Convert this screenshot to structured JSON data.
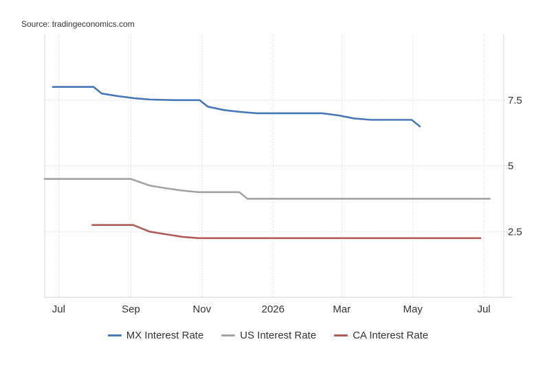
{
  "source": "Source: tradingeconomics.com",
  "chart_data": {
    "type": "line",
    "x_tick_labels": [
      "Jul",
      "Sep",
      "Nov",
      "2026",
      "Mar",
      "May",
      "Jul"
    ],
    "x_tick_dates": [
      "2025-07-01",
      "2025-09-01",
      "2025-11-01",
      "2026-01-01",
      "2026-03-01",
      "2026-05-01",
      "2026-07-01"
    ],
    "y_tick_labels": [
      "2.5",
      "5",
      "7.5"
    ],
    "y_tick_values": [
      2.5,
      5,
      7.5
    ],
    "xlim": [
      "2025-06-19",
      "2026-07-18"
    ],
    "ylim": [
      0,
      10
    ],
    "grid": true,
    "legend_position": "bottom",
    "series": [
      {
        "name": "MX Interest Rate",
        "color": "#4677b8",
        "points": [
          [
            "2025-06-26",
            8.0
          ],
          [
            "2025-07-31",
            8.0
          ],
          [
            "2025-08-07",
            7.75
          ],
          [
            "2025-08-21",
            7.65
          ],
          [
            "2025-09-04",
            7.57
          ],
          [
            "2025-09-18",
            7.52
          ],
          [
            "2025-10-09",
            7.5
          ],
          [
            "2025-10-30",
            7.5
          ],
          [
            "2025-11-06",
            7.25
          ],
          [
            "2025-11-20",
            7.12
          ],
          [
            "2025-12-04",
            7.05
          ],
          [
            "2025-12-18",
            7.0
          ],
          [
            "2026-02-12",
            7.0
          ],
          [
            "2026-02-26",
            6.92
          ],
          [
            "2026-03-12",
            6.8
          ],
          [
            "2026-03-26",
            6.75
          ],
          [
            "2026-04-30",
            6.75
          ],
          [
            "2026-05-07",
            6.5
          ]
        ]
      },
      {
        "name": "US Interest Rate",
        "color": "#a3a3a3",
        "points": [
          [
            "2025-06-19",
            4.5
          ],
          [
            "2025-09-01",
            4.5
          ],
          [
            "2025-09-17",
            4.25
          ],
          [
            "2025-10-01",
            4.15
          ],
          [
            "2025-10-15",
            4.06
          ],
          [
            "2025-10-29",
            4.0
          ],
          [
            "2025-12-03",
            4.0
          ],
          [
            "2025-12-10",
            3.75
          ],
          [
            "2026-07-06",
            3.75
          ]
        ]
      },
      {
        "name": "CA Interest Rate",
        "color": "#b35a56",
        "points": [
          [
            "2025-07-30",
            2.75
          ],
          [
            "2025-09-03",
            2.75
          ],
          [
            "2025-09-17",
            2.5
          ],
          [
            "2025-10-01",
            2.4
          ],
          [
            "2025-10-15",
            2.3
          ],
          [
            "2025-10-29",
            2.25
          ],
          [
            "2026-06-28",
            2.25
          ]
        ]
      }
    ]
  }
}
